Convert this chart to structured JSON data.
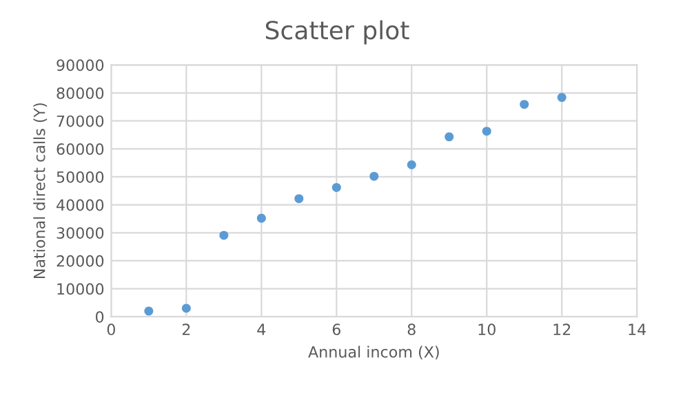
{
  "chart_data": {
    "type": "scatter",
    "title": "Scatter plot",
    "xlabel": "Annual incom (X)",
    "ylabel": "National direct calls (Y)",
    "x": [
      1,
      2,
      3,
      4,
      5,
      6,
      7,
      8,
      9,
      10,
      11,
      12
    ],
    "series": [
      {
        "color": "#5b9bd5",
        "values": [
          2000,
          3000,
          29100,
          35200,
          42200,
          46200,
          50200,
          54300,
          64300,
          66300,
          75900,
          78400
        ]
      }
    ],
    "xlim": [
      0,
      14
    ],
    "xticks": [
      0,
      2,
      4,
      6,
      8,
      10,
      12,
      14
    ],
    "ylim": [
      0,
      90000
    ],
    "yticks": [
      0,
      10000,
      20000,
      30000,
      40000,
      50000,
      60000,
      70000,
      80000,
      90000
    ],
    "grid": true,
    "marker": "circle"
  }
}
